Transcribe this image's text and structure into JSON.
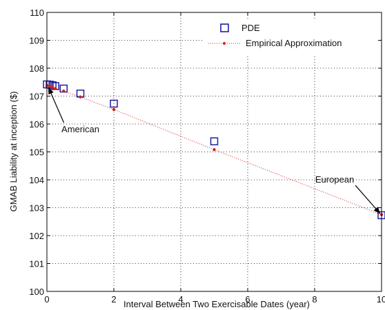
{
  "chart_data": {
    "type": "scatter",
    "xlabel": "Interval Between Two Exercisable Dates (year)",
    "ylabel": "GMAB Liability at inception ($)",
    "xlim": [
      0,
      10
    ],
    "ylim": [
      100,
      110
    ],
    "xticks": [
      "0",
      "2",
      "4",
      "6",
      "8",
      "10"
    ],
    "yticks": [
      "100",
      "101",
      "102",
      "103",
      "104",
      "105",
      "106",
      "107",
      "108",
      "109",
      "110"
    ],
    "grid": true,
    "legend_position": "top-right",
    "series": [
      {
        "name": "PDE",
        "marker": "square",
        "color": "#1f1f9f",
        "x": [
          0,
          0.0833,
          0.1667,
          0.25,
          0.5,
          1,
          2,
          5,
          10
        ],
        "y": [
          107.42,
          107.41,
          107.39,
          107.36,
          107.27,
          107.09,
          106.73,
          105.38,
          102.73
        ]
      },
      {
        "name": "Empirical Approximation",
        "marker": "dot",
        "line": "dotted",
        "color": "#cc2222",
        "x": [
          0,
          0.0833,
          0.1667,
          0.25,
          0.5,
          1,
          2,
          5,
          10
        ],
        "y": [
          107.38,
          107.35,
          107.31,
          107.27,
          107.18,
          106.97,
          106.52,
          105.08,
          102.75
        ]
      }
    ],
    "annotations": [
      {
        "text": "American",
        "x": 1.0,
        "y": 105.7,
        "arrow_to_x": 0.05,
        "arrow_to_y": 107.3
      },
      {
        "text": "European",
        "x": 8.6,
        "y": 103.9,
        "arrow_to_x": 9.95,
        "arrow_to_y": 102.8
      }
    ]
  }
}
